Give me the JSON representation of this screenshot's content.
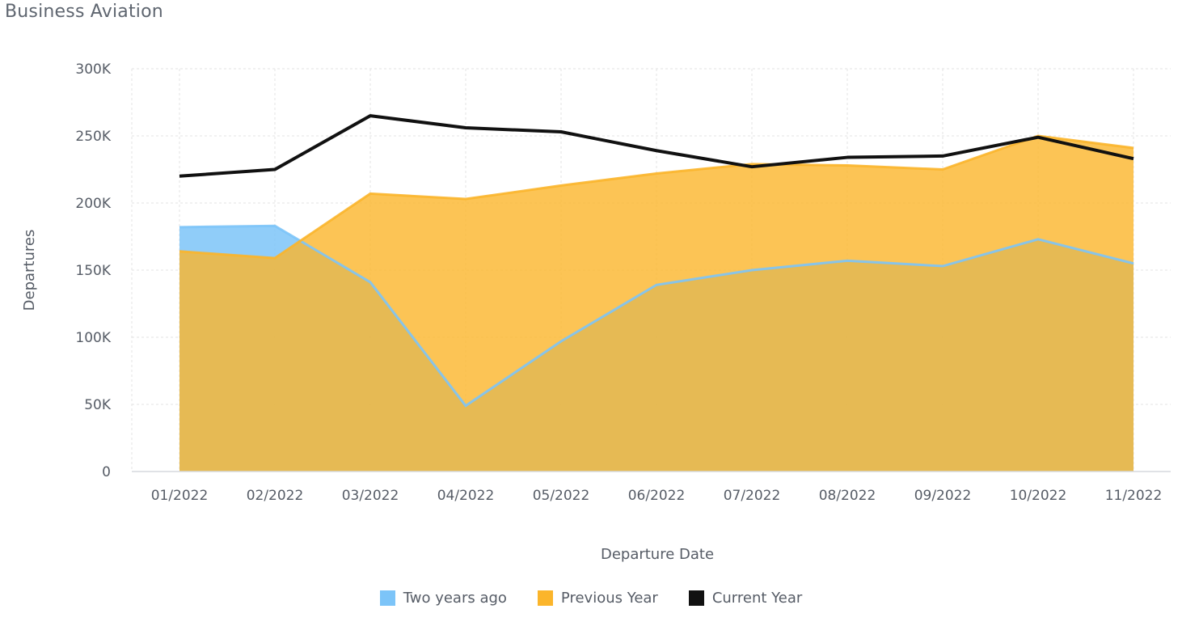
{
  "title": "Business Aviation",
  "colors": {
    "two_years_ago": "#7cc4f8",
    "previous_year": "#fbb52b",
    "overlap": "#dfb142",
    "current_year": "#111111",
    "grid": "#e3e3e3",
    "axis": "#d6d9de"
  },
  "chart_data": {
    "type": "area",
    "title": "Business Aviation",
    "xlabel": "Departure Date",
    "ylabel": "Departures",
    "ylim": [
      0,
      300000
    ],
    "yticks": [
      0,
      50000,
      100000,
      150000,
      200000,
      250000,
      300000
    ],
    "ytick_labels": [
      "0",
      "50K",
      "100K",
      "150K",
      "200K",
      "250K",
      "300K"
    ],
    "grid": true,
    "legend_position": "bottom",
    "categories": [
      "01/2022",
      "02/2022",
      "03/2022",
      "04/2022",
      "05/2022",
      "06/2022",
      "07/2022",
      "08/2022",
      "09/2022",
      "10/2022",
      "11/2022"
    ],
    "series": [
      {
        "name": "Two years ago",
        "type": "area",
        "color": "#7cc4f8",
        "values": [
          182000,
          183000,
          141000,
          49000,
          97000,
          139000,
          150000,
          157000,
          153000,
          173000,
          155000
        ]
      },
      {
        "name": "Previous Year",
        "type": "area",
        "color": "#fbb52b",
        "values": [
          164000,
          159000,
          207000,
          203000,
          213000,
          222000,
          229000,
          228000,
          225000,
          250000,
          241000
        ]
      },
      {
        "name": "Current Year",
        "type": "line",
        "color": "#111111",
        "values": [
          220000,
          225000,
          265000,
          256000,
          253000,
          239000,
          227000,
          234000,
          235000,
          249000,
          233000
        ]
      }
    ]
  }
}
